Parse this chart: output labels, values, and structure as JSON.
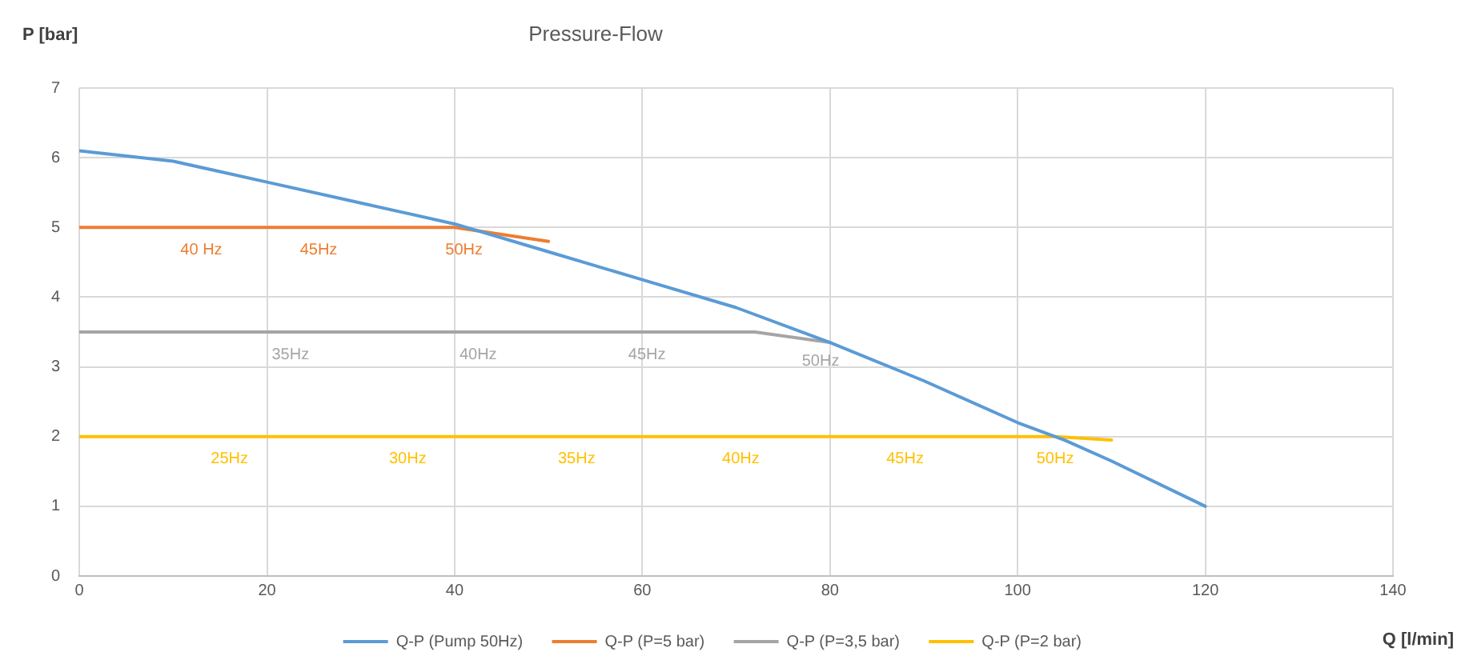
{
  "chart_data": {
    "type": "line",
    "title": "Pressure-Flow",
    "xlabel": "Q [l/min]",
    "ylabel": "P [bar]",
    "xlim": [
      0,
      140
    ],
    "xticks": [
      0,
      20,
      40,
      60,
      80,
      100,
      120,
      140
    ],
    "ylim": [
      0,
      7
    ],
    "yticks": [
      0,
      1,
      2,
      3,
      4,
      5,
      6,
      7
    ],
    "grid": true,
    "legend": "bottom",
    "marker": "none",
    "line_style": "solid",
    "series": [
      {
        "name": "Q-P (Pump 50Hz)",
        "color": "#5b9bd5",
        "x": [
          0,
          10,
          20,
          30,
          40,
          50,
          60,
          70,
          80,
          90,
          100,
          105,
          110,
          120
        ],
        "values": [
          6.1,
          5.95,
          5.65,
          5.35,
          5.05,
          4.65,
          4.25,
          3.85,
          3.35,
          2.8,
          2.2,
          1.95,
          1.65,
          1.0
        ]
      },
      {
        "name": "Q-P (P=5 bar)",
        "color": "#ed7d31",
        "x": [
          0,
          20,
          40,
          50
        ],
        "values": [
          5,
          5,
          5,
          4.8
        ]
      },
      {
        "name": "Q-P (P=3,5 bar)",
        "color": "#a5a5a5",
        "x": [
          0,
          20,
          40,
          60,
          72,
          80
        ],
        "values": [
          3.5,
          3.5,
          3.5,
          3.5,
          3.5,
          3.35
        ]
      },
      {
        "name": "Q-P (P=2 bar)",
        "color": "#ffc000",
        "x": [
          0,
          20,
          40,
          60,
          80,
          104,
          110
        ],
        "values": [
          2,
          2,
          2,
          2,
          2,
          2,
          1.95
        ]
      }
    ],
    "annotations": [
      {
        "text": "40 Hz",
        "x": 13,
        "y": 5
      },
      {
        "text": "45Hz",
        "x": 25.5,
        "y": 5
      },
      {
        "text": "50Hz",
        "x": 41,
        "y": 5
      },
      {
        "text": "35Hz",
        "x": 22.5,
        "y": 3.5
      },
      {
        "text": "40Hz",
        "x": 42.5,
        "y": 3.5
      },
      {
        "text": "45Hz",
        "x": 60.5,
        "y": 3.5
      },
      {
        "text": "50Hz",
        "x": 79,
        "y": 3.4
      },
      {
        "text": "25Hz",
        "x": 16,
        "y": 2
      },
      {
        "text": "30Hz",
        "x": 35,
        "y": 2
      },
      {
        "text": "35Hz",
        "x": 53,
        "y": 2
      },
      {
        "text": "40Hz",
        "x": 70.5,
        "y": 2
      },
      {
        "text": "45Hz",
        "x": 88,
        "y": 2
      },
      {
        "text": "50Hz",
        "x": 104,
        "y": 2
      }
    ]
  }
}
